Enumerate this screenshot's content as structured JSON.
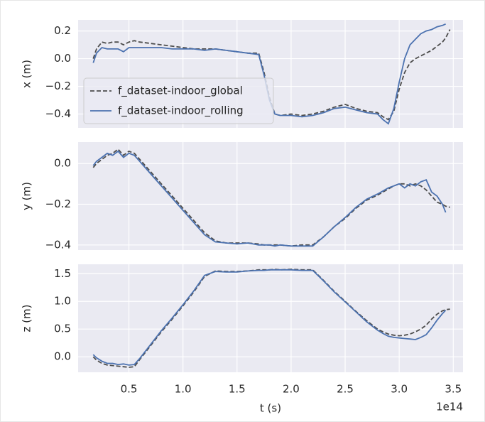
{
  "chart_data": [
    {
      "type": "line",
      "ylabel": "x (m)",
      "legend": "lower left",
      "grid": true,
      "xlim": [
        0.03,
        3.59
      ],
      "xticks": [
        0.5,
        {
          "value": 1,
          "label": "1.0"
        },
        1.5,
        {
          "value": 2,
          "label": "2.0"
        },
        2.5,
        {
          "value": 3,
          "label": "3.0"
        },
        3.5
      ],
      "ylim": [
        -0.5,
        0.28
      ],
      "yticks": [
        {
          "value": -0.4,
          "label": "−0.4"
        },
        {
          "value": -0.2,
          "label": "−0.2"
        },
        {
          "value": 0,
          "label": "0.0"
        },
        0.2
      ],
      "x": [
        0.17,
        0.2,
        0.25,
        0.3,
        0.35,
        0.4,
        0.45,
        0.5,
        0.55,
        0.6,
        0.7,
        0.8,
        0.9,
        1.0,
        1.1,
        1.2,
        1.3,
        1.4,
        1.5,
        1.6,
        1.7,
        1.75,
        1.8,
        1.85,
        1.9,
        2.0,
        2.1,
        2.2,
        2.3,
        2.4,
        2.5,
        2.6,
        2.7,
        2.8,
        2.85,
        2.9,
        2.95,
        3.0,
        3.05,
        3.1,
        3.15,
        3.2,
        3.25,
        3.3,
        3.35,
        3.4,
        3.43,
        3.47
      ],
      "series": [
        {
          "name": "f_dataset-indoor_global",
          "color": "#4d4d4d",
          "dashed": true,
          "values": [
            0.0,
            0.07,
            0.12,
            0.11,
            0.12,
            0.12,
            0.1,
            0.12,
            0.13,
            0.12,
            0.11,
            0.1,
            0.09,
            0.08,
            0.07,
            0.07,
            0.07,
            0.06,
            0.05,
            0.04,
            0.04,
            -0.1,
            -0.28,
            -0.4,
            -0.41,
            -0.4,
            -0.41,
            -0.4,
            -0.38,
            -0.35,
            -0.33,
            -0.36,
            -0.38,
            -0.39,
            -0.42,
            -0.44,
            -0.38,
            -0.22,
            -0.1,
            -0.03,
            0.0,
            0.02,
            0.04,
            0.06,
            0.09,
            0.12,
            0.15,
            0.21
          ]
        },
        {
          "name": "f_dataset-indoor_rolling",
          "color": "#4c72b0",
          "dashed": false,
          "values": [
            -0.03,
            0.04,
            0.08,
            0.07,
            0.07,
            0.07,
            0.05,
            0.08,
            0.08,
            0.08,
            0.08,
            0.08,
            0.07,
            0.07,
            0.07,
            0.06,
            0.07,
            0.06,
            0.05,
            0.04,
            0.03,
            -0.12,
            -0.3,
            -0.4,
            -0.41,
            -0.41,
            -0.42,
            -0.41,
            -0.39,
            -0.36,
            -0.35,
            -0.37,
            -0.39,
            -0.4,
            -0.44,
            -0.47,
            -0.36,
            -0.17,
            0.0,
            0.1,
            0.14,
            0.18,
            0.2,
            0.21,
            0.23,
            0.24,
            0.25,
            null
          ]
        }
      ]
    },
    {
      "type": "line",
      "ylabel": "y (m)",
      "legend": false,
      "grid": true,
      "xlim": [
        0.03,
        3.59
      ],
      "xticks": [
        0.5,
        {
          "value": 1,
          "label": "1.0"
        },
        1.5,
        {
          "value": 2,
          "label": "2.0"
        },
        2.5,
        {
          "value": 3,
          "label": "3.0"
        },
        3.5
      ],
      "ylim": [
        -0.425,
        0.105
      ],
      "yticks": [
        {
          "value": -0.4,
          "label": "−0.4"
        },
        {
          "value": -0.2,
          "label": "−0.2"
        },
        {
          "value": 0,
          "label": "0.0"
        }
      ],
      "x": [
        0.17,
        0.2,
        0.25,
        0.3,
        0.35,
        0.4,
        0.45,
        0.5,
        0.55,
        0.6,
        0.7,
        0.8,
        0.9,
        1.0,
        1.1,
        1.2,
        1.3,
        1.4,
        1.5,
        1.6,
        1.7,
        1.75,
        1.8,
        1.85,
        1.9,
        2.0,
        2.1,
        2.2,
        2.3,
        2.4,
        2.5,
        2.6,
        2.7,
        2.8,
        2.85,
        2.9,
        2.95,
        3.0,
        3.05,
        3.1,
        3.15,
        3.2,
        3.25,
        3.3,
        3.35,
        3.4,
        3.43,
        3.47
      ],
      "series": [
        {
          "name": "f_dataset-indoor_global",
          "color": "#4d4d4d",
          "dashed": true,
          "values": [
            -0.02,
            0.0,
            0.02,
            0.04,
            0.05,
            0.07,
            0.04,
            0.06,
            0.05,
            0.02,
            -0.04,
            -0.1,
            -0.16,
            -0.22,
            -0.28,
            -0.34,
            -0.38,
            -0.39,
            -0.39,
            -0.39,
            -0.395,
            -0.4,
            -0.4,
            -0.4,
            -0.4,
            -0.405,
            -0.4,
            -0.4,
            -0.36,
            -0.31,
            -0.27,
            -0.22,
            -0.18,
            -0.155,
            -0.14,
            -0.125,
            -0.11,
            -0.1,
            -0.1,
            -0.11,
            -0.1,
            -0.11,
            -0.13,
            -0.16,
            -0.19,
            -0.2,
            -0.21,
            -0.215
          ]
        },
        {
          "name": "f_dataset-indoor_rolling",
          "color": "#4c72b0",
          "dashed": false,
          "values": [
            -0.01,
            0.01,
            0.03,
            0.05,
            0.04,
            0.06,
            0.03,
            0.05,
            0.04,
            0.01,
            -0.05,
            -0.11,
            -0.17,
            -0.23,
            -0.29,
            -0.35,
            -0.385,
            -0.39,
            -0.395,
            -0.39,
            -0.4,
            -0.4,
            -0.4,
            -0.405,
            -0.4,
            -0.405,
            -0.405,
            -0.405,
            -0.36,
            -0.31,
            -0.265,
            -0.215,
            -0.175,
            -0.15,
            -0.135,
            -0.12,
            -0.11,
            -0.1,
            -0.12,
            -0.1,
            -0.11,
            -0.09,
            -0.08,
            -0.14,
            -0.16,
            -0.2,
            -0.24,
            null
          ]
        }
      ]
    },
    {
      "type": "line",
      "ylabel": "z (m)",
      "xlabel": "t (s)",
      "x_offset_label": "1e14",
      "legend": false,
      "grid": true,
      "xlim": [
        0.03,
        3.59
      ],
      "xticks": [
        0.5,
        {
          "value": 1,
          "label": "1.0"
        },
        1.5,
        {
          "value": 2,
          "label": "2.0"
        },
        2.5,
        {
          "value": 3,
          "label": "3.0"
        },
        3.5
      ],
      "ylim": [
        -0.28,
        1.67
      ],
      "yticks": [
        {
          "value": 0,
          "label": "0.0"
        },
        0.5,
        {
          "value": 1,
          "label": "1.0"
        },
        1.5
      ],
      "x": [
        0.17,
        0.2,
        0.25,
        0.3,
        0.35,
        0.4,
        0.45,
        0.5,
        0.55,
        0.6,
        0.7,
        0.8,
        0.9,
        1.0,
        1.1,
        1.2,
        1.3,
        1.4,
        1.5,
        1.6,
        1.7,
        1.75,
        1.8,
        1.85,
        1.9,
        2.0,
        2.1,
        2.2,
        2.3,
        2.4,
        2.5,
        2.6,
        2.7,
        2.8,
        2.85,
        2.9,
        2.95,
        3.0,
        3.05,
        3.1,
        3.15,
        3.2,
        3.25,
        3.3,
        3.35,
        3.4,
        3.43,
        3.47
      ],
      "series": [
        {
          "name": "f_dataset-indoor_global",
          "color": "#4d4d4d",
          "dashed": true,
          "values": [
            0.0,
            -0.06,
            -0.12,
            -0.15,
            -0.16,
            -0.17,
            -0.18,
            -0.19,
            -0.18,
            -0.05,
            0.2,
            0.45,
            0.68,
            0.92,
            1.17,
            1.45,
            1.55,
            1.54,
            1.54,
            1.55,
            1.57,
            1.57,
            1.57,
            1.58,
            1.57,
            1.58,
            1.57,
            1.57,
            1.38,
            1.18,
            1.0,
            0.82,
            0.65,
            0.5,
            0.45,
            0.41,
            0.39,
            0.38,
            0.39,
            0.41,
            0.45,
            0.5,
            0.57,
            0.68,
            0.77,
            0.83,
            0.85,
            0.86
          ]
        },
        {
          "name": "f_dataset-indoor_rolling",
          "color": "#4c72b0",
          "dashed": false,
          "values": [
            0.04,
            -0.02,
            -0.08,
            -0.12,
            -0.12,
            -0.14,
            -0.13,
            -0.15,
            -0.14,
            -0.03,
            0.22,
            0.47,
            0.7,
            0.94,
            1.19,
            1.47,
            1.54,
            1.53,
            1.53,
            1.55,
            1.56,
            1.56,
            1.57,
            1.57,
            1.57,
            1.57,
            1.56,
            1.56,
            1.37,
            1.17,
            0.99,
            0.81,
            0.63,
            0.48,
            0.42,
            0.37,
            0.35,
            0.34,
            0.33,
            0.32,
            0.31,
            0.35,
            0.4,
            0.52,
            0.66,
            0.78,
            0.84,
            null
          ]
        }
      ]
    }
  ]
}
